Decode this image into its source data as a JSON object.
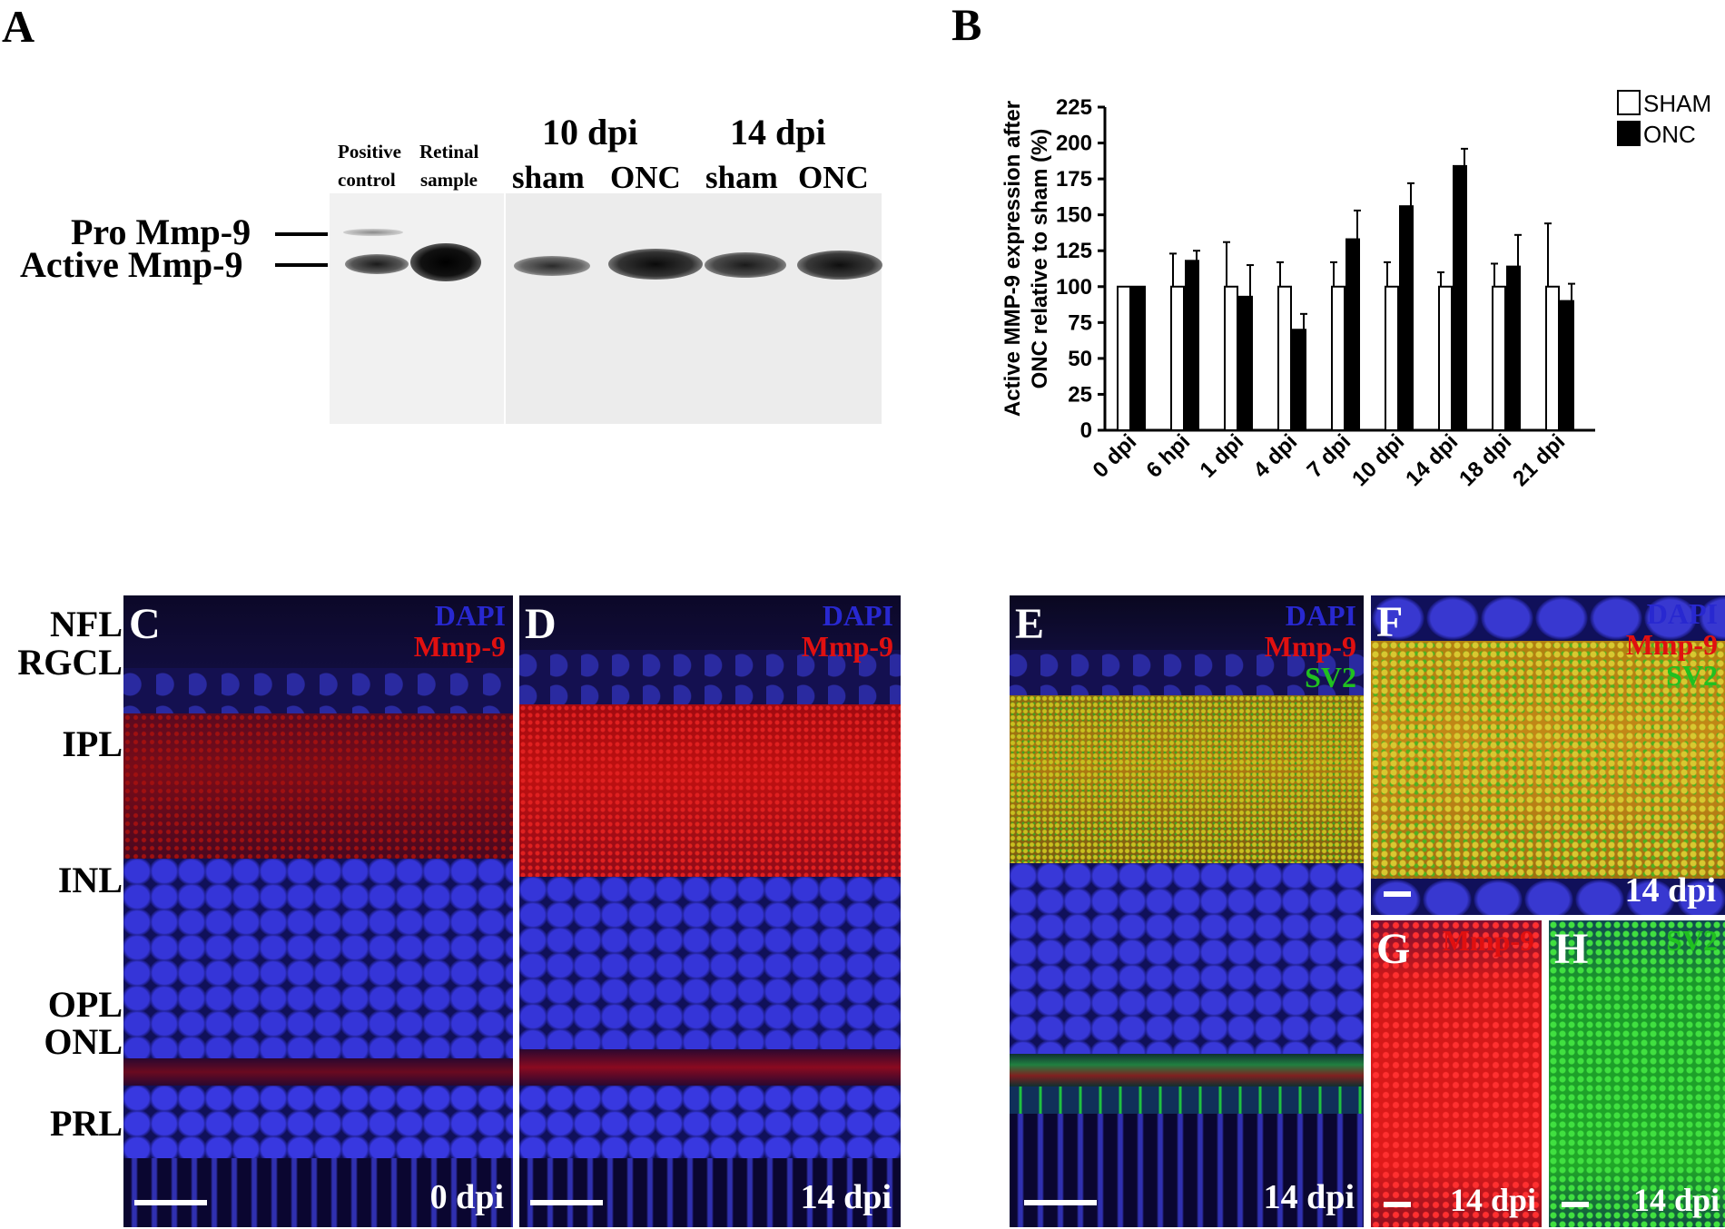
{
  "panel_letters": {
    "a": "A",
    "b": "B",
    "c": "C",
    "d": "D",
    "e": "E",
    "f": "F",
    "g": "G",
    "h": "H"
  },
  "blot": {
    "lane_labels": {
      "positive_1": "Positive",
      "positive_2": "control",
      "retinal_1": "Retinal",
      "retinal_2": "sample",
      "group_10": "10 dpi",
      "group_14": "14 dpi",
      "sham_a": "sham",
      "onc_a": "ONC",
      "sham_b": "sham",
      "onc_b": "ONC"
    },
    "band_labels": {
      "pro": "Pro Mmp-9",
      "active": "Active Mmp-9"
    }
  },
  "chart_data": {
    "type": "bar",
    "categories": [
      "0 dpi",
      "6 hpi",
      "1 dpi",
      "4 dpi",
      "7 dpi",
      "10 dpi",
      "14 dpi",
      "18 dpi",
      "21 dpi"
    ],
    "series": [
      {
        "name": "SHAM",
        "color": "#ffffff",
        "values": [
          100,
          100,
          100,
          100,
          100,
          100,
          100,
          100,
          100
        ],
        "errors": [
          0,
          23,
          31,
          17,
          17,
          17,
          10,
          16,
          44
        ]
      },
      {
        "name": "ONC",
        "color": "#000000",
        "values": [
          100,
          118,
          93,
          70,
          133,
          156,
          184,
          114,
          90
        ],
        "errors": [
          0,
          7,
          22,
          11,
          20,
          16,
          12,
          22,
          12
        ]
      }
    ],
    "ylabel_line1": "Active MMP-9 expression after",
    "ylabel_line2": "ONC relative to sham (%)",
    "ylim": [
      0,
      225
    ],
    "yticks": [
      0,
      25,
      50,
      75,
      100,
      125,
      150,
      175,
      200,
      225
    ],
    "legend_position": "top-right",
    "grid": false
  },
  "micro": {
    "stain_dapi": "DAPI",
    "stain_mmp9": "Mmp-9",
    "stain_sv2": "SV2",
    "time_0": "0 dpi",
    "time_14": "14 dpi",
    "layers": [
      "NFL",
      "RGCL",
      "IPL",
      "INL",
      "OPL",
      "ONL",
      "PRL"
    ]
  },
  "colors": {
    "dapi": "#2828d0",
    "mmp9": "#e01010",
    "sv2": "#20c020"
  }
}
